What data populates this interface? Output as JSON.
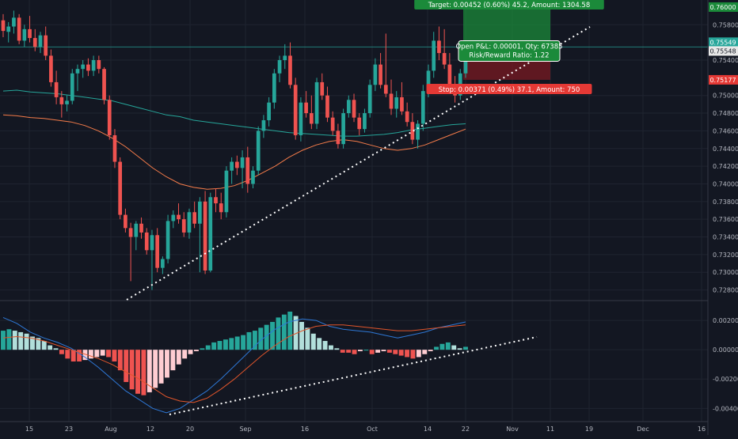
{
  "theme": {
    "background": "#131722",
    "grid": "#1f2430",
    "axis_text": "#b2b5be",
    "bull": "#26a69a",
    "bear": "#ef5350",
    "target_zone": "#1b8a3a",
    "stop_zone": "#7a1a22"
  },
  "position": {
    "target_label": "Target: 0.00452 (0.60%) 45.2, Amount: 1304.58",
    "stop_label": "Stop: 0.00371 (0.49%) 37.1, Amount: 750",
    "pnl_label": "Open P&L: 0.00001, Qty: 67385",
    "rr_label": "Risk/Reward Ratio: 1.22",
    "target_price": 0.76,
    "entry_price": 0.75548,
    "stop_price": 0.75177
  },
  "price_badges": [
    {
      "label": "0.76000",
      "price": 0.76,
      "color": "#1b8a3a"
    },
    {
      "label": "0.75549",
      "price": 0.75549,
      "color": "#26a69a"
    },
    {
      "label": "0.75548",
      "price": 0.75548,
      "color": "#e8e8e8"
    },
    {
      "label": "0.75177",
      "price": 0.75177,
      "color": "#e53935"
    }
  ],
  "chart_data": [
    {
      "type": "candlestick",
      "y_ticks": [
        "0.75800",
        "0.75400",
        "0.75000",
        "0.74800",
        "0.74600",
        "0.74400",
        "0.74200",
        "0.74000",
        "0.73800",
        "0.73600",
        "0.73400",
        "0.73200",
        "0.73000",
        "0.72800"
      ],
      "x_ticks": [
        "15",
        "23",
        "Aug",
        "12",
        "20",
        "Sep",
        "16",
        "Oct",
        "14",
        "22",
        "Nov",
        "11",
        "19",
        "Dec",
        "16"
      ],
      "ylim": [
        0.7268,
        0.7608
      ],
      "candles": [
        [
          0.7585,
          0.7592,
          0.7566,
          0.7573
        ],
        [
          0.7572,
          0.7583,
          0.756,
          0.7578
        ],
        [
          0.7578,
          0.7596,
          0.757,
          0.7588
        ],
        [
          0.7588,
          0.7592,
          0.7558,
          0.7562
        ],
        [
          0.7562,
          0.758,
          0.7555,
          0.7575
        ],
        [
          0.7575,
          0.759,
          0.756,
          0.7565
        ],
        [
          0.7565,
          0.7575,
          0.755,
          0.7555
        ],
        [
          0.7555,
          0.7572,
          0.7548,
          0.7568
        ],
        [
          0.7568,
          0.7578,
          0.754,
          0.7545
        ],
        [
          0.7545,
          0.7552,
          0.751,
          0.7515
        ],
        [
          0.7515,
          0.7528,
          0.749,
          0.7498
        ],
        [
          0.7498,
          0.7505,
          0.7475,
          0.749
        ],
        [
          0.749,
          0.75,
          0.7482,
          0.7494
        ],
        [
          0.7494,
          0.753,
          0.749,
          0.7525
        ],
        [
          0.7525,
          0.7535,
          0.7505,
          0.753
        ],
        [
          0.753,
          0.754,
          0.752,
          0.7535
        ],
        [
          0.7535,
          0.7542,
          0.7522,
          0.7528
        ],
        [
          0.7528,
          0.7545,
          0.7522,
          0.754
        ],
        [
          0.754,
          0.7545,
          0.7525,
          0.753
        ],
        [
          0.753,
          0.7532,
          0.749,
          0.7495
        ],
        [
          0.7495,
          0.75,
          0.745,
          0.7455
        ],
        [
          0.7455,
          0.7462,
          0.7418,
          0.7425
        ],
        [
          0.7425,
          0.743,
          0.736,
          0.7365
        ],
        [
          0.7365,
          0.7372,
          0.7345,
          0.735
        ],
        [
          0.735,
          0.7356,
          0.729,
          0.734
        ],
        [
          0.734,
          0.7358,
          0.7325,
          0.7355
        ],
        [
          0.7355,
          0.7362,
          0.7338,
          0.7345
        ],
        [
          0.7345,
          0.735,
          0.732,
          0.7325
        ],
        [
          0.7325,
          0.7348,
          0.728,
          0.7342
        ],
        [
          0.7342,
          0.735,
          0.73,
          0.7305
        ],
        [
          0.7305,
          0.7318,
          0.7298,
          0.7315
        ],
        [
          0.7315,
          0.7365,
          0.731,
          0.7358
        ],
        [
          0.7358,
          0.737,
          0.735,
          0.7365
        ],
        [
          0.7365,
          0.7378,
          0.7355,
          0.736
        ],
        [
          0.736,
          0.7368,
          0.734,
          0.7345
        ],
        [
          0.7345,
          0.7372,
          0.7338,
          0.7368
        ],
        [
          0.7368,
          0.738,
          0.735,
          0.7355
        ],
        [
          0.7355,
          0.7385,
          0.73,
          0.738
        ],
        [
          0.738,
          0.7392,
          0.7298,
          0.7302
        ],
        [
          0.7302,
          0.739,
          0.73,
          0.7385
        ],
        [
          0.7385,
          0.7395,
          0.7368,
          0.7378
        ],
        [
          0.7378,
          0.739,
          0.736,
          0.7368
        ],
        [
          0.7368,
          0.742,
          0.7362,
          0.7415
        ],
        [
          0.7415,
          0.743,
          0.74,
          0.7425
        ],
        [
          0.7425,
          0.7432,
          0.741,
          0.7418
        ],
        [
          0.7418,
          0.7438,
          0.7395,
          0.743
        ],
        [
          0.743,
          0.7442,
          0.739,
          0.74
        ],
        [
          0.74,
          0.742,
          0.7395,
          0.7415
        ],
        [
          0.7415,
          0.7465,
          0.741,
          0.746
        ],
        [
          0.746,
          0.7478,
          0.7452,
          0.7472
        ],
        [
          0.7472,
          0.7498,
          0.7465,
          0.7492
        ],
        [
          0.7492,
          0.753,
          0.7485,
          0.7525
        ],
        [
          0.7525,
          0.7545,
          0.7515,
          0.754
        ],
        [
          0.754,
          0.7558,
          0.753,
          0.7545
        ],
        [
          0.7545,
          0.756,
          0.7508,
          0.7512
        ],
        [
          0.7512,
          0.752,
          0.745,
          0.7455
        ],
        [
          0.7455,
          0.7498,
          0.7448,
          0.7492
        ],
        [
          0.7492,
          0.7505,
          0.7475,
          0.748
        ],
        [
          0.748,
          0.75,
          0.7462,
          0.7468
        ],
        [
          0.7468,
          0.752,
          0.7462,
          0.7515
        ],
        [
          0.7515,
          0.7525,
          0.7495,
          0.75
        ],
        [
          0.75,
          0.751,
          0.747,
          0.7475
        ],
        [
          0.7475,
          0.7482,
          0.7455,
          0.746
        ],
        [
          0.746,
          0.7468,
          0.744,
          0.7445
        ],
        [
          0.7445,
          0.7485,
          0.744,
          0.748
        ],
        [
          0.748,
          0.75,
          0.7475,
          0.7495
        ],
        [
          0.7495,
          0.7502,
          0.747,
          0.7475
        ],
        [
          0.7475,
          0.748,
          0.7455,
          0.7462
        ],
        [
          0.7462,
          0.7485,
          0.7458,
          0.748
        ],
        [
          0.748,
          0.7518,
          0.7475,
          0.7512
        ],
        [
          0.7512,
          0.7542,
          0.7505,
          0.7535
        ],
        [
          0.7535,
          0.7548,
          0.7508,
          0.7512
        ],
        [
          0.7512,
          0.757,
          0.7498,
          0.7502
        ],
        [
          0.7502,
          0.7518,
          0.7478,
          0.7485
        ],
        [
          0.7485,
          0.7505,
          0.7475,
          0.7498
        ],
        [
          0.7498,
          0.7515,
          0.7478,
          0.7482
        ],
        [
          0.7482,
          0.7492,
          0.7465,
          0.747
        ],
        [
          0.747,
          0.748,
          0.7445,
          0.745
        ],
        [
          0.745,
          0.7472,
          0.744,
          0.7468
        ],
        [
          0.7468,
          0.7512,
          0.746,
          0.7505
        ],
        [
          0.7505,
          0.7535,
          0.7498,
          0.7528
        ],
        [
          0.7528,
          0.7572,
          0.752,
          0.7562
        ],
        [
          0.7562,
          0.7578,
          0.754,
          0.7548
        ],
        [
          0.7548,
          0.7575,
          0.753,
          0.7535
        ],
        [
          0.7535,
          0.7548,
          0.7505,
          0.7512
        ],
        [
          0.7512,
          0.7522,
          0.7492,
          0.75
        ],
        [
          0.75,
          0.753,
          0.7495,
          0.7525
        ],
        [
          0.7525,
          0.7552,
          0.752,
          0.7548
        ]
      ],
      "moving_averages": [
        {
          "color": "#26a69a",
          "values": [
            0.7505,
            0.7506,
            0.7504,
            0.7503,
            0.7502,
            0.75,
            0.7498,
            0.7496,
            0.7494,
            0.749,
            0.7486,
            0.7482,
            0.7478,
            0.7476,
            0.7472,
            0.747,
            0.7468,
            0.7466,
            0.7464,
            0.7462,
            0.746,
            0.7458,
            0.7457,
            0.7456,
            0.7455,
            0.7454,
            0.7454,
            0.7455,
            0.7456,
            0.7458,
            0.7461,
            0.7463,
            0.7465,
            0.7467,
            0.7468
          ]
        },
        {
          "color": "#f57c4a",
          "values": [
            0.7478,
            0.7477,
            0.7475,
            0.7474,
            0.7472,
            0.747,
            0.7466,
            0.746,
            0.7452,
            0.7442,
            0.743,
            0.7418,
            0.7408,
            0.74,
            0.7396,
            0.7394,
            0.7395,
            0.7398,
            0.7404,
            0.7412,
            0.742,
            0.743,
            0.7438,
            0.7444,
            0.7448,
            0.745,
            0.7448,
            0.7444,
            0.744,
            0.7438,
            0.744,
            0.7444,
            0.745,
            0.7456,
            0.7462
          ]
        }
      ]
    },
    {
      "type": "histogram",
      "y_ticks": [
        "0.00200",
        "0.00000",
        "-0.00200",
        "-0.00400"
      ],
      "ylim": [
        -0.0049,
        0.0033
      ],
      "histogram": [
        0.0013,
        0.0014,
        0.0013,
        0.0012,
        0.0011,
        0.0009,
        0.0008,
        0.0006,
        0.0003,
        0.0001,
        -0.0003,
        -0.0006,
        -0.0008,
        -0.0008,
        -0.0007,
        -0.0006,
        -0.0005,
        -0.0004,
        -0.0005,
        -0.0008,
        -0.0014,
        -0.0022,
        -0.0027,
        -0.003,
        -0.0031,
        -0.0029,
        -0.0026,
        -0.0023,
        -0.0019,
        -0.0014,
        -0.001,
        -0.0006,
        -0.0003,
        -0.0001,
        0.0001,
        0.0003,
        0.0005,
        0.0006,
        0.0007,
        0.0008,
        0.0009,
        0.001,
        0.0012,
        0.0013,
        0.0015,
        0.0017,
        0.0019,
        0.0022,
        0.0024,
        0.0026,
        0.0023,
        0.0019,
        0.0015,
        0.0011,
        0.0008,
        0.0006,
        0.0003,
        0.0001,
        -0.0002,
        -0.0002,
        -0.0003,
        -0.0001,
        0.0,
        -0.0003,
        -0.0002,
        -0.0001,
        -0.0002,
        -0.0003,
        -0.0004,
        -0.0005,
        -0.0006,
        -0.0005,
        -0.0003,
        -0.0001,
        0.0002,
        0.0004,
        0.0005,
        0.0003,
        0.0001,
        0.0002
      ],
      "lines": [
        {
          "color": "#2e78d6",
          "values": [
            0.0022,
            0.0018,
            0.0012,
            0.0008,
            0.0005,
            0.0001,
            -0.0005,
            -0.0012,
            -0.002,
            -0.0028,
            -0.0034,
            -0.004,
            -0.0043,
            -0.004,
            -0.0034,
            -0.0028,
            -0.002,
            -0.0011,
            -0.0002,
            0.0007,
            0.0014,
            0.0019,
            0.0021,
            0.002,
            0.0016,
            0.0014,
            0.0013,
            0.0012,
            0.001,
            0.0008,
            0.001,
            0.0012,
            0.0015,
            0.0017,
            0.0019
          ]
        },
        {
          "color": "#e0552b",
          "values": [
            0.0008,
            0.0009,
            0.0008,
            0.0006,
            0.0003,
            0.0,
            -0.0003,
            -0.0006,
            -0.001,
            -0.0015,
            -0.002,
            -0.0026,
            -0.0032,
            -0.0035,
            -0.0036,
            -0.0033,
            -0.0027,
            -0.002,
            -0.0012,
            -0.0004,
            0.0003,
            0.0009,
            0.0013,
            0.0016,
            0.0017,
            0.0017,
            0.0016,
            0.0015,
            0.0014,
            0.0013,
            0.0013,
            0.0014,
            0.0015,
            0.0016,
            0.0017
          ]
        }
      ]
    }
  ]
}
